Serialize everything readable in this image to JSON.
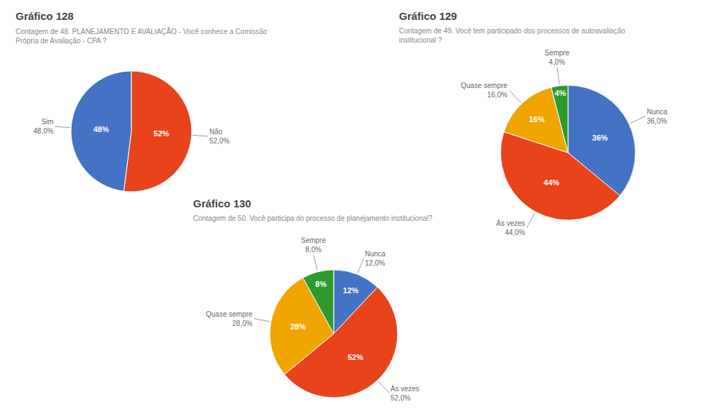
{
  "chart_data": [
    {
      "type": "pie",
      "title": "Gráfico 128",
      "subtitle": "Contagem de 48. PLANEJAMENTO E AVALIAÇÃO - Você conhece a Comissão\nPrópria de Avaliação - CPA ?",
      "categories": [
        "Não\n52,0%",
        "Sim\n48,0%"
      ],
      "values": [
        52,
        48
      ],
      "value_labels": [
        "52%",
        "48%"
      ],
      "colors": [
        "#e8431a",
        "#4472c4"
      ],
      "data_labels": true
    },
    {
      "type": "pie",
      "title": "Gráfico 129",
      "subtitle": "Contagem de 49. Você tem participado dos processos de autoavaliação\ninstitucional ?",
      "categories": [
        "Nunca\n36,0%",
        "Às vezes\n44,0%",
        "Quase sempre\n16,0%",
        "Sempre\n4,0%"
      ],
      "values": [
        36,
        44,
        16,
        4
      ],
      "value_labels": [
        "36%",
        "44%",
        "16%",
        "4%"
      ],
      "colors": [
        "#4472c4",
        "#e8431a",
        "#f0a500",
        "#2e9a2e"
      ],
      "data_labels": true
    },
    {
      "type": "pie",
      "title": "Gráfico 130",
      "subtitle": "Contagem de 50. Você participa do processo de planejamento institucional?",
      "categories": [
        "Nunca\n12,0%",
        "Às vezes\n52,0%",
        "Quase sempre\n28,0%",
        "Sempre\n8,0%"
      ],
      "values": [
        12,
        52,
        28,
        8
      ],
      "value_labels": [
        "12%",
        "52%",
        "28%",
        "8%"
      ],
      "colors": [
        "#4472c4",
        "#e8431a",
        "#f0a500",
        "#2e9a2e"
      ],
      "data_labels": true
    }
  ]
}
